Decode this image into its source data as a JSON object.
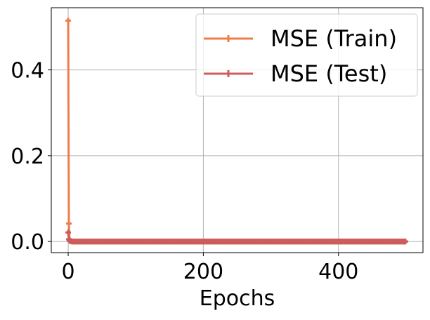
{
  "chart_data": {
    "type": "line",
    "title": "",
    "xlabel": "Epochs",
    "ylabel": "",
    "xlim": [
      -25,
      525
    ],
    "ylim": [
      -0.026,
      0.545
    ],
    "x_ticks": [
      0,
      200,
      400
    ],
    "y_ticks": [
      0.0,
      0.2,
      0.4
    ],
    "x_tick_labels": [
      "0",
      "200",
      "400"
    ],
    "y_tick_labels": [
      "0.0",
      "0.2",
      "0.4"
    ],
    "grid": true,
    "legend_position": "top-right",
    "legend_labels": [
      "MSE (Train)",
      "MSE (Test)"
    ],
    "series": [
      {
        "name": "MSE (Train)",
        "color": "#f07c4a",
        "marker": "plus",
        "head": [
          [
            0,
            0.515
          ],
          [
            1,
            0.042
          ],
          [
            2,
            0.005
          ],
          [
            3,
            0.002
          ],
          [
            4,
            0.001
          ],
          [
            5,
            0.0005
          ]
        ],
        "tail": {
          "from": 6,
          "to": 499,
          "value": 0.0
        }
      },
      {
        "name": "MSE (Test)",
        "color": "#cd5c5c",
        "marker": "plus",
        "head": [
          [
            0,
            0.021
          ],
          [
            1,
            0.005
          ],
          [
            2,
            0.002
          ],
          [
            3,
            0.001
          ],
          [
            4,
            0.0005
          ]
        ],
        "tail": {
          "from": 5,
          "to": 499,
          "value": 0.0
        }
      }
    ]
  }
}
